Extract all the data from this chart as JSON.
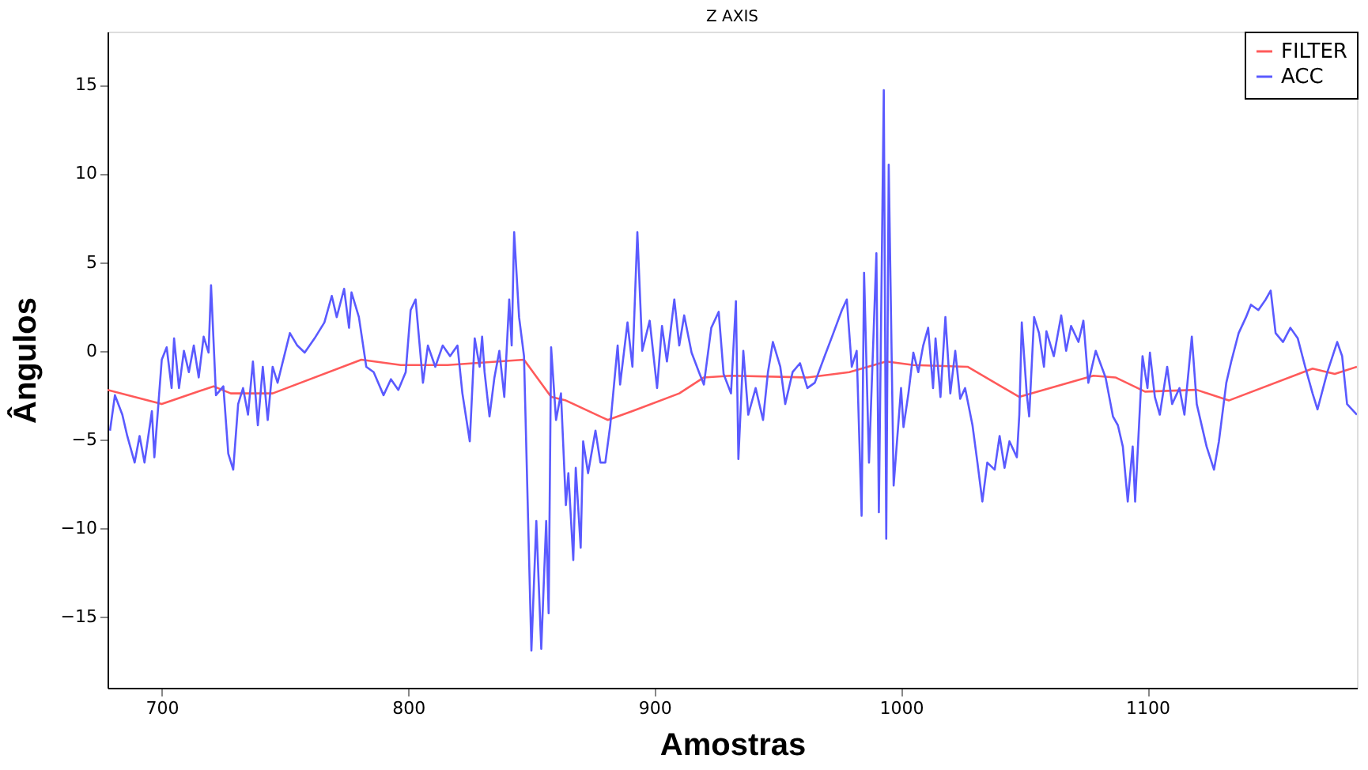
{
  "chart_data": {
    "type": "line",
    "title": "Z AXIS",
    "xlabel": "Amostras",
    "ylabel": "Ângulos",
    "xlim": [
      678,
      1185
    ],
    "xticks": [
      700,
      800,
      900,
      1000,
      1100
    ],
    "ylim": [
      -19,
      18
    ],
    "yticks": [
      -15,
      -10,
      -5,
      0,
      5,
      10,
      15
    ],
    "grid": false,
    "legend": "top right",
    "line_style": "solid",
    "marker": "none",
    "series": [
      {
        "name": "FILTER",
        "color": "#ff5a5a",
        "x": [
          678,
          700,
          721,
          728,
          745,
          781,
          797,
          816,
          847,
          858,
          864,
          881,
          891,
          910,
          920,
          931,
          962,
          979,
          994,
          1005,
          1027,
          1048,
          1078,
          1087,
          1099,
          1120,
          1133,
          1167,
          1176,
          1185
        ],
        "values": [
          -2.2,
          -3.0,
          -2.0,
          -2.4,
          -2.4,
          -0.5,
          -0.8,
          -0.8,
          -0.5,
          -2.6,
          -2.8,
          -3.9,
          -3.4,
          -2.4,
          -1.5,
          -1.4,
          -1.5,
          -1.2,
          -0.6,
          -0.8,
          -0.9,
          -2.6,
          -1.4,
          -1.5,
          -2.3,
          -2.2,
          -2.8,
          -1.0,
          -1.3,
          -0.9
        ]
      },
      {
        "name": "ACC",
        "color": "#5a5aff",
        "x": [
          679,
          681,
          684,
          686,
          689,
          691,
          693,
          696,
          697,
          700,
          702,
          704,
          705,
          707,
          709,
          711,
          713,
          715,
          717,
          719,
          720,
          722,
          725,
          727,
          729,
          731,
          733,
          735,
          737,
          739,
          741,
          743,
          745,
          747,
          752,
          755,
          758,
          762,
          766,
          769,
          771,
          774,
          776,
          777,
          780,
          783,
          786,
          790,
          793,
          796,
          799,
          801,
          803,
          806,
          808,
          811,
          814,
          817,
          820,
          822,
          825,
          827,
          829,
          830,
          831,
          833,
          835,
          837,
          839,
          841,
          842,
          843,
          845,
          847,
          850,
          852,
          854,
          856,
          857,
          858,
          860,
          862,
          864,
          865,
          867,
          868,
          870,
          871,
          873,
          876,
          878,
          880,
          882,
          885,
          886,
          889,
          891,
          893,
          895,
          898,
          901,
          903,
          905,
          908,
          910,
          912,
          915,
          918,
          920,
          923,
          926,
          928,
          931,
          933,
          934,
          936,
          938,
          941,
          944,
          946,
          948,
          951,
          953,
          956,
          959,
          962,
          965,
          969,
          972,
          976,
          978,
          980,
          982,
          984,
          985,
          987,
          990,
          991,
          993,
          994,
          995,
          997,
          1000,
          1001,
          1003,
          1005,
          1007,
          1009,
          1011,
          1013,
          1014,
          1016,
          1018,
          1020,
          1022,
          1024,
          1026,
          1029,
          1031,
          1033,
          1035,
          1038,
          1040,
          1042,
          1044,
          1047,
          1048,
          1049,
          1051,
          1052,
          1054,
          1056,
          1058,
          1059,
          1062,
          1065,
          1067,
          1069,
          1072,
          1074,
          1076,
          1079,
          1083,
          1086,
          1088,
          1090,
          1092,
          1094,
          1095,
          1098,
          1100,
          1101,
          1103,
          1105,
          1108,
          1110,
          1113,
          1115,
          1118,
          1120,
          1124,
          1127,
          1129,
          1132,
          1134,
          1137,
          1140,
          1142,
          1145,
          1148,
          1150,
          1152,
          1155,
          1158,
          1161,
          1164,
          1167,
          1169,
          1173,
          1177,
          1179,
          1181,
          1185
        ],
        "values": [
          -4.5,
          -2.5,
          -3.6,
          -4.8,
          -6.3,
          -4.8,
          -6.3,
          -3.4,
          -6.0,
          -0.5,
          0.2,
          -2.1,
          0.7,
          -2.1,
          0.0,
          -1.2,
          0.3,
          -1.5,
          0.8,
          -0.1,
          3.7,
          -2.5,
          -2.0,
          -5.8,
          -6.7,
          -3.0,
          -2.1,
          -3.6,
          -0.6,
          -4.2,
          -0.9,
          -3.9,
          -0.9,
          -1.8,
          1.0,
          0.3,
          -0.1,
          0.7,
          1.6,
          3.1,
          1.9,
          3.5,
          1.3,
          3.3,
          1.9,
          -0.9,
          -1.2,
          -2.5,
          -1.6,
          -2.2,
          -1.2,
          2.3,
          2.9,
          -1.8,
          0.3,
          -0.9,
          0.3,
          -0.3,
          0.3,
          -2.4,
          -5.1,
          0.7,
          -0.9,
          0.8,
          -1.2,
          -3.7,
          -1.5,
          0.0,
          -2.6,
          2.9,
          0.3,
          6.7,
          1.9,
          -0.3,
          -16.9,
          -9.6,
          -16.8,
          -9.6,
          -14.8,
          0.2,
          -3.9,
          -2.4,
          -8.7,
          -6.9,
          -11.8,
          -6.6,
          -11.1,
          -5.1,
          -6.9,
          -4.5,
          -6.3,
          -6.3,
          -4.2,
          0.3,
          -1.9,
          1.6,
          -0.9,
          6.7,
          0.0,
          1.7,
          -2.1,
          1.4,
          -0.6,
          2.9,
          0.3,
          2.0,
          -0.1,
          -1.2,
          -1.9,
          1.3,
          2.2,
          -1.3,
          -2.4,
          2.8,
          -6.1,
          0.0,
          -3.6,
          -2.1,
          -3.9,
          -1.2,
          0.5,
          -0.9,
          -3.0,
          -1.2,
          -0.7,
          -2.1,
          -1.8,
          -0.3,
          0.8,
          2.3,
          2.9,
          -0.9,
          0.0,
          -9.3,
          4.4,
          -6.3,
          5.5,
          -9.1,
          14.7,
          -10.6,
          10.5,
          -7.6,
          -2.1,
          -4.3,
          -2.4,
          -0.1,
          -1.2,
          0.3,
          1.3,
          -2.1,
          0.7,
          -2.6,
          1.9,
          -2.4,
          0.0,
          -2.7,
          -2.1,
          -4.2,
          -6.3,
          -8.5,
          -6.3,
          -6.7,
          -4.8,
          -6.6,
          -5.1,
          -6.0,
          -3.6,
          1.6,
          -2.4,
          -3.7,
          1.9,
          1.0,
          -0.9,
          1.1,
          -0.3,
          2.0,
          0.0,
          1.4,
          0.5,
          1.7,
          -1.8,
          0.0,
          -1.5,
          -3.7,
          -4.2,
          -5.4,
          -8.5,
          -5.4,
          -8.5,
          -0.3,
          -2.1,
          -0.1,
          -2.6,
          -3.6,
          -0.9,
          -3.0,
          -2.1,
          -3.6,
          0.8,
          -3.0,
          -5.4,
          -6.7,
          -5.1,
          -1.8,
          -0.6,
          1.0,
          1.9,
          2.6,
          2.3,
          2.9,
          3.4,
          1.0,
          0.5,
          1.3,
          0.7,
          -0.9,
          -2.4,
          -3.3,
          -1.2,
          0.5,
          -0.3,
          -3.0,
          -3.6
        ]
      }
    ]
  }
}
